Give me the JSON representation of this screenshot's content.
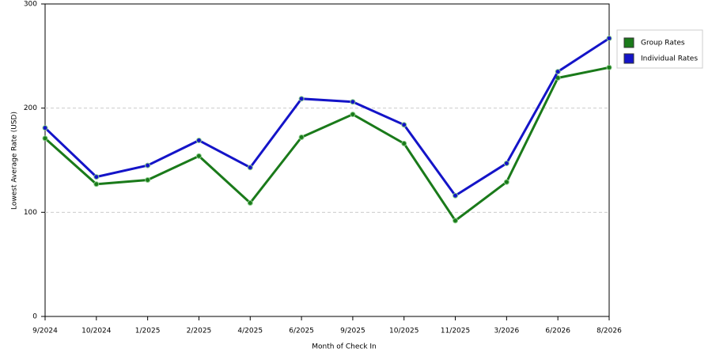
{
  "chart_data": {
    "type": "line",
    "x_label": "Month of Check In",
    "y_label": "Lowest Average Rate (USD)",
    "categories": [
      "9/2024",
      "10/2024",
      "1/2025",
      "2/2025",
      "4/2025",
      "6/2025",
      "9/2025",
      "10/2025",
      "11/2025",
      "3/2026",
      "6/2026",
      "8/2026"
    ],
    "series": [
      {
        "name": "Group Rates",
        "color": "#1a7a1a",
        "values": [
          171,
          127,
          131,
          154,
          109,
          172,
          194,
          166,
          92,
          129,
          229,
          239
        ]
      },
      {
        "name": "Individual Rates",
        "color": "#1414c8",
        "values": [
          181,
          134,
          145,
          169,
          143,
          209,
          206,
          184,
          116,
          147,
          235,
          267
        ]
      }
    ],
    "ylim": [
      0,
      300
    ],
    "yticks": [
      0,
      100,
      200,
      300
    ],
    "grid": true,
    "legend": "right"
  }
}
